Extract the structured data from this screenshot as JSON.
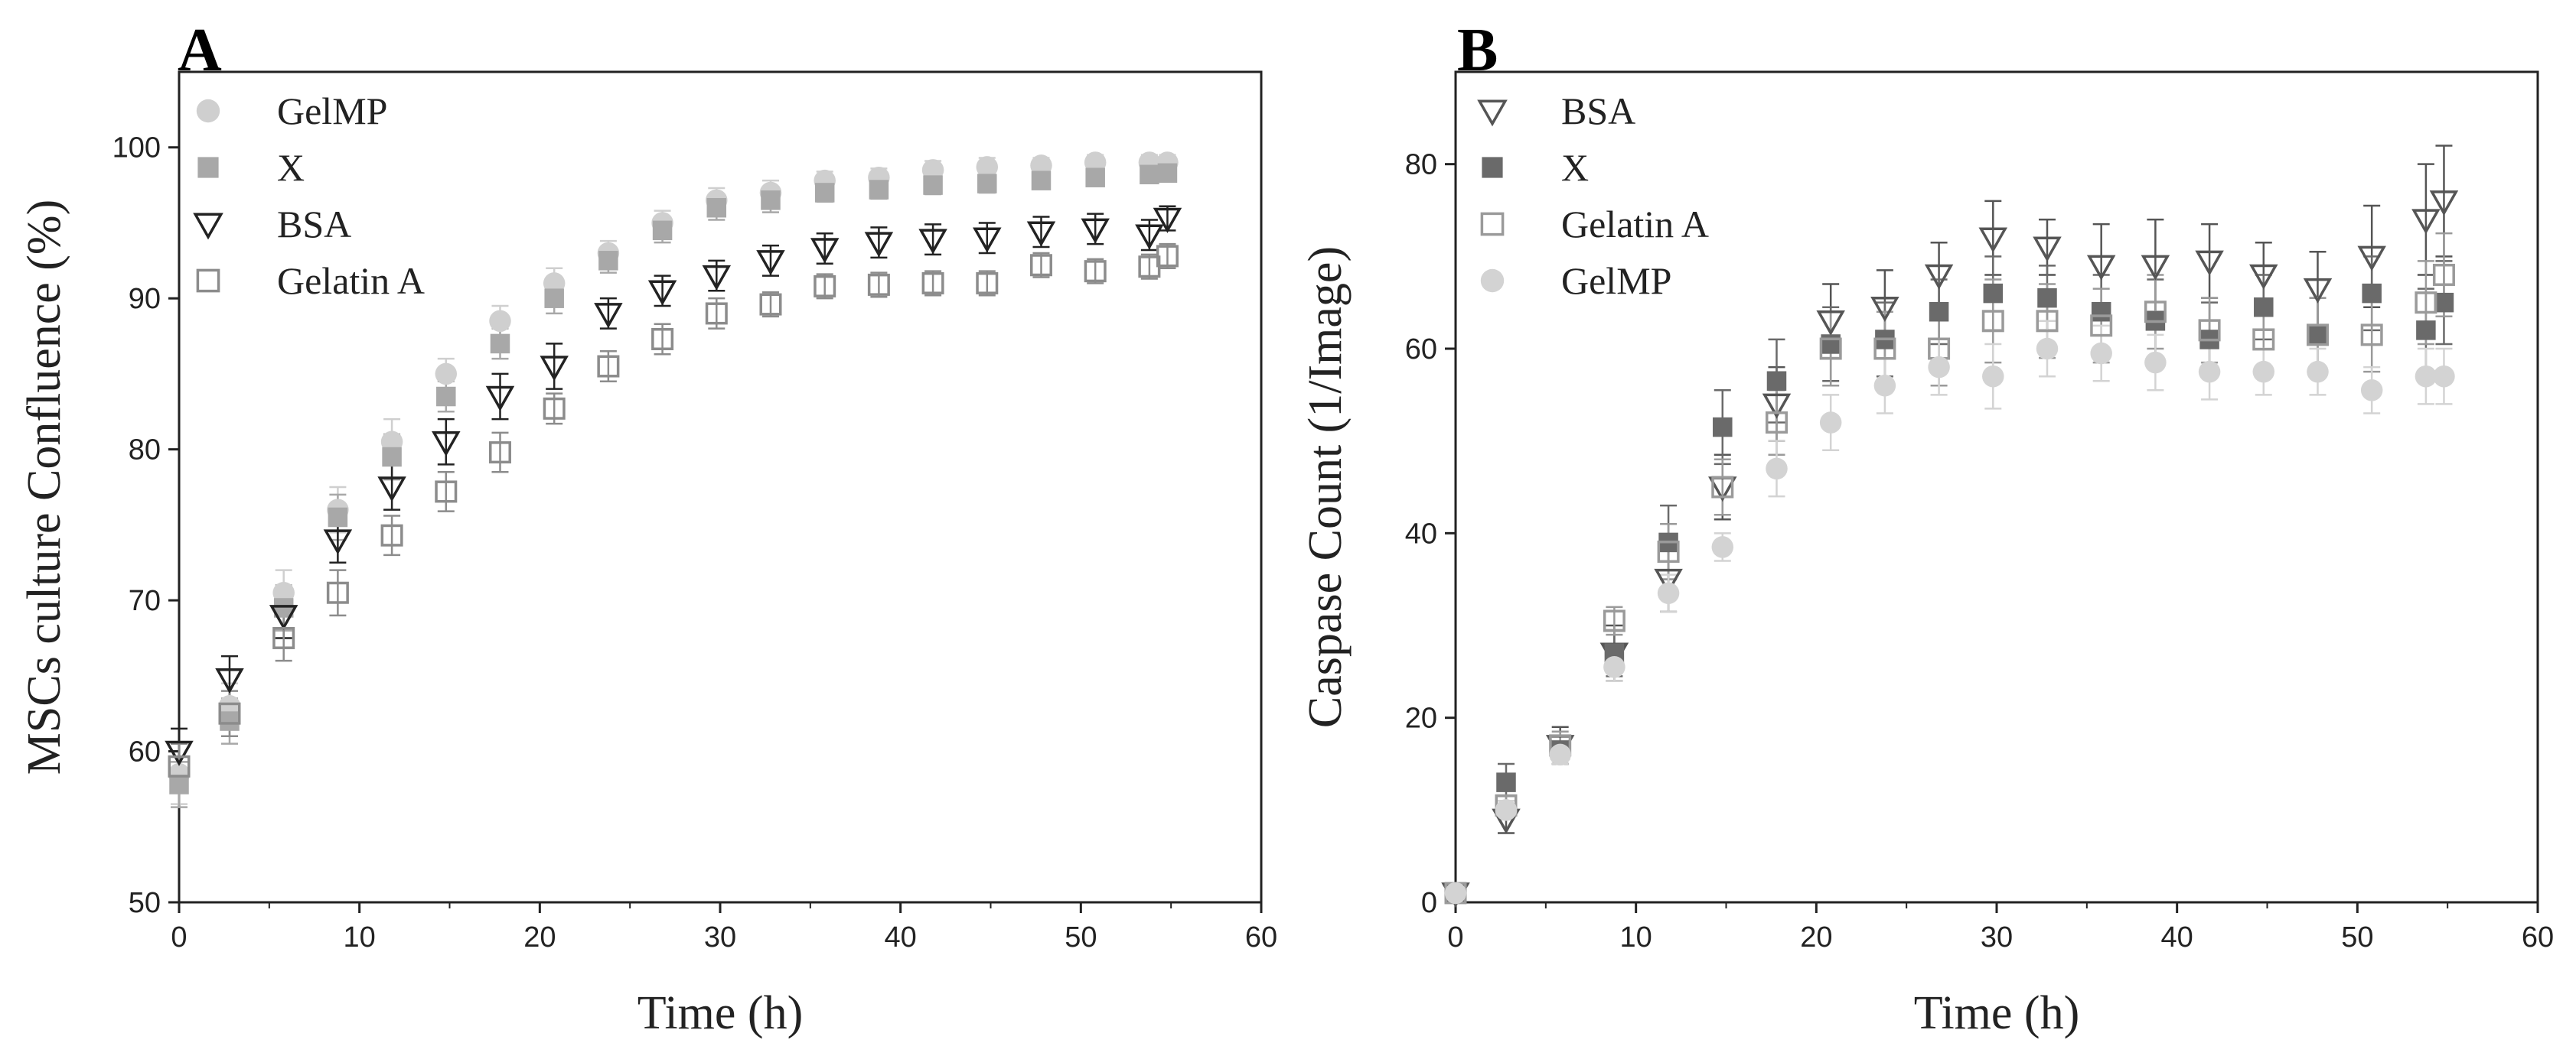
{
  "chart_data": [
    {
      "panel": "A",
      "type": "scatter",
      "xlabel": "Time (h)",
      "ylabel": "MSCs culture Confluence (%)",
      "xlim": [
        0,
        60
      ],
      "ylim": [
        50,
        105
      ],
      "xticks": [
        "0",
        "10",
        "20",
        "30",
        "40",
        "50",
        "60"
      ],
      "yticks": [
        "50",
        "60",
        "70",
        "80",
        "90",
        "100"
      ],
      "legend_position": "top-left",
      "x": [
        0,
        2.8,
        5.8,
        8.8,
        11.8,
        14.8,
        17.8,
        20.8,
        23.8,
        26.8,
        29.8,
        32.8,
        35.8,
        38.8,
        41.8,
        44.8,
        47.8,
        50.8,
        53.8,
        54.8
      ],
      "series": [
        {
          "name": "GelMP",
          "marker": "circle",
          "color": "#cfcfcf",
          "values": [
            58.5,
            63.0,
            70.5,
            76.0,
            80.5,
            85.0,
            88.5,
            91.0,
            93.0,
            95.0,
            96.5,
            97.0,
            97.8,
            98.0,
            98.5,
            98.7,
            98.8,
            99.0,
            99.0,
            99.0
          ],
          "errors": [
            2.0,
            1.5,
            1.5,
            1.5,
            1.5,
            1.0,
            1.0,
            1.0,
            0.8,
            0.8,
            0.8,
            0.8,
            0.6,
            0.6,
            0.6,
            0.6,
            0.5,
            0.5,
            0.5,
            0.5
          ]
        },
        {
          "name": "X",
          "marker": "square",
          "color": "#a8a8a8",
          "values": [
            57.8,
            62.0,
            69.5,
            75.5,
            79.5,
            83.5,
            87.0,
            90.0,
            92.5,
            94.5,
            96.0,
            96.5,
            97.0,
            97.2,
            97.5,
            97.6,
            97.8,
            98.0,
            98.2,
            98.3
          ],
          "errors": [
            1.5,
            1.5,
            1.5,
            1.5,
            1.5,
            1.0,
            1.0,
            1.0,
            0.8,
            0.8,
            0.8,
            0.8,
            0.6,
            0.6,
            0.6,
            0.6,
            0.5,
            0.5,
            0.5,
            0.5
          ]
        },
        {
          "name": "BSA",
          "marker": "triangle-down",
          "color": "#222222",
          "values": [
            60.0,
            64.8,
            69.0,
            74.0,
            77.5,
            80.5,
            83.5,
            85.5,
            89.0,
            90.5,
            91.5,
            92.5,
            93.3,
            93.7,
            93.9,
            94.0,
            94.4,
            94.6,
            94.2,
            95.3
          ],
          "errors": [
            1.5,
            1.5,
            1.5,
            1.5,
            1.5,
            1.5,
            1.5,
            1.5,
            1.0,
            1.0,
            1.0,
            1.0,
            1.0,
            1.0,
            1.0,
            1.0,
            1.0,
            1.0,
            1.0,
            0.8
          ]
        },
        {
          "name": "Gelatin A",
          "marker": "square-open",
          "color": "#8c8c8c",
          "values": [
            59.0,
            62.5,
            67.5,
            70.5,
            74.3,
            77.2,
            79.8,
            82.7,
            85.5,
            87.3,
            89.0,
            89.6,
            90.8,
            90.9,
            91.0,
            91.0,
            92.2,
            91.8,
            92.1,
            92.8
          ],
          "errors": [
            1.5,
            1.5,
            1.5,
            1.5,
            1.3,
            1.3,
            1.3,
            1.0,
            1.0,
            1.0,
            1.0,
            0.8,
            0.8,
            0.8,
            0.8,
            0.8,
            0.8,
            0.8,
            0.8,
            0.8
          ]
        }
      ]
    },
    {
      "panel": "B",
      "type": "scatter",
      "xlabel": "Time (h)",
      "ylabel": "Caspase Count (1/Image)",
      "xlim": [
        0,
        60
      ],
      "ylim": [
        0,
        90
      ],
      "xticks": [
        "0",
        "10",
        "20",
        "30",
        "40",
        "50",
        "60"
      ],
      "yticks": [
        "0",
        "20",
        "40",
        "60",
        "80"
      ],
      "legend_position": "top-left",
      "x": [
        0,
        2.8,
        5.8,
        8.8,
        11.8,
        14.8,
        17.8,
        20.8,
        23.8,
        26.8,
        29.8,
        32.8,
        35.8,
        38.8,
        41.8,
        44.8,
        47.8,
        50.8,
        53.8,
        54.8
      ],
      "series": [
        {
          "name": "BSA",
          "marker": "triangle-down",
          "color": "#555555",
          "values": [
            1.0,
            9.0,
            17.0,
            27.0,
            35.0,
            45.0,
            54.0,
            63.0,
            64.5,
            68.0,
            72.0,
            71.0,
            69.0,
            69.0,
            69.5,
            68.0,
            66.5,
            70.0,
            74.0,
            76.0
          ],
          "errors": [
            0.5,
            1.5,
            2.0,
            3.0,
            3.5,
            3.5,
            4.0,
            4.0,
            4.0,
            3.5,
            4.0,
            3.0,
            4.5,
            5.0,
            4.0,
            3.5,
            4.0,
            5.5,
            6.0,
            6.0
          ]
        },
        {
          "name": "X",
          "marker": "square",
          "color": "#6a6a6a",
          "values": [
            1.0,
            13.0,
            16.5,
            27.0,
            39.0,
            51.5,
            56.5,
            60.5,
            61.0,
            64.0,
            66.0,
            65.5,
            64.0,
            63.0,
            61.0,
            64.5,
            61.5,
            66.0,
            62.0,
            65.0
          ],
          "errors": [
            0.5,
            2.0,
            1.5,
            2.5,
            4.0,
            4.0,
            4.5,
            4.0,
            4.0,
            3.5,
            4.0,
            3.5,
            4.0,
            4.5,
            4.0,
            3.5,
            4.0,
            4.0,
            4.5,
            4.5
          ]
        },
        {
          "name": "Gelatin A",
          "marker": "square-open",
          "color": "#9a9a9a",
          "values": [
            1.0,
            10.5,
            17.0,
            30.5,
            38.0,
            45.0,
            52.0,
            60.0,
            60.0,
            60.0,
            63.0,
            63.0,
            62.5,
            64.0,
            62.0,
            61.0,
            61.5,
            61.5,
            65.0,
            68.0
          ],
          "errors": [
            0.5,
            1.0,
            1.5,
            1.5,
            3.0,
            3.0,
            3.5,
            4.0,
            4.0,
            4.0,
            4.5,
            4.0,
            4.0,
            4.0,
            3.5,
            3.5,
            4.0,
            4.0,
            4.5,
            4.5
          ]
        },
        {
          "name": "GelMP",
          "marker": "circle",
          "color": "#d3d3d3",
          "values": [
            1.0,
            10.0,
            16.0,
            25.5,
            33.5,
            38.5,
            47.0,
            52.0,
            56.0,
            58.0,
            57.0,
            60.0,
            59.5,
            58.5,
            57.5,
            57.5,
            57.5,
            55.5,
            57.0,
            57.0
          ],
          "errors": [
            0.5,
            1.0,
            1.0,
            1.5,
            2.0,
            1.5,
            3.0,
            3.0,
            3.0,
            3.0,
            3.5,
            3.0,
            3.0,
            3.0,
            3.0,
            2.5,
            2.5,
            2.5,
            3.0,
            3.0
          ]
        }
      ]
    }
  ]
}
